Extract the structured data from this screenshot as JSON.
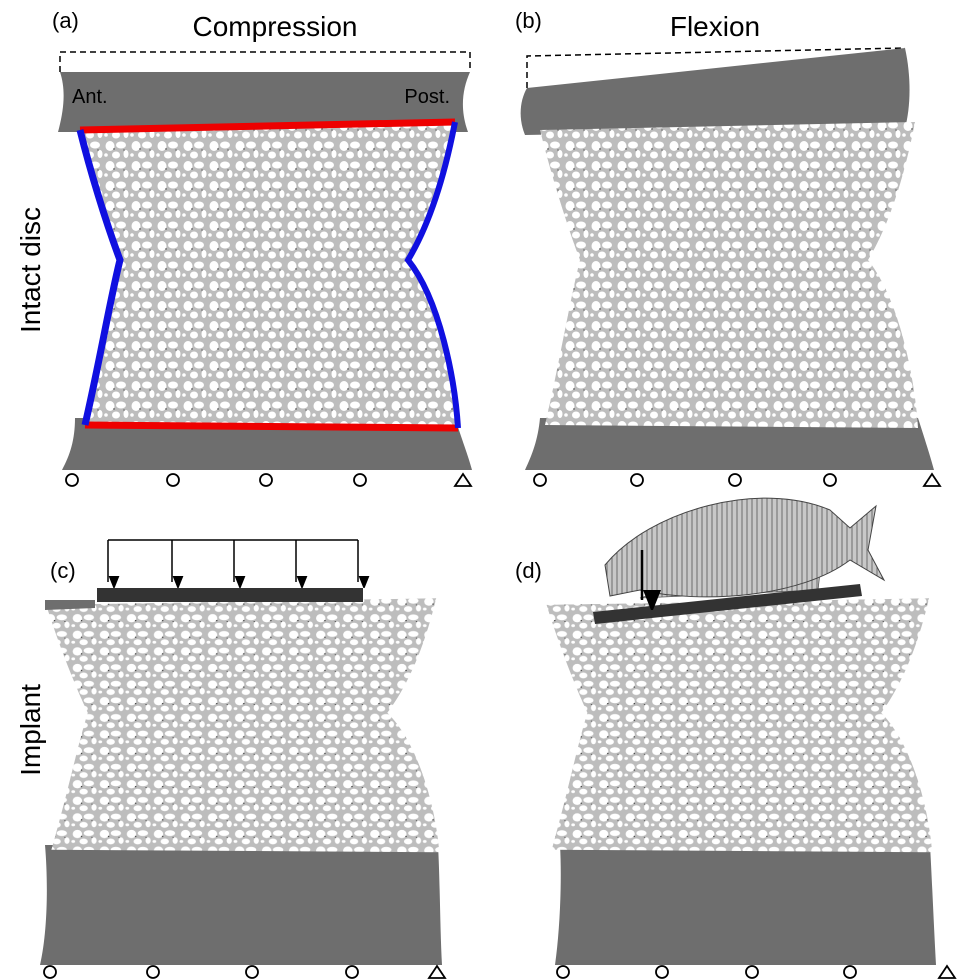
{
  "panels": [
    {
      "label": "(a)",
      "title": "Compression",
      "annotations": [
        "Ant.",
        "Post."
      ]
    },
    {
      "label": "(b)",
      "title": "Flexion"
    },
    {
      "label": "(c)"
    },
    {
      "label": "(d)"
    }
  ],
  "rows": [
    "Intact disc",
    "Implant"
  ]
}
